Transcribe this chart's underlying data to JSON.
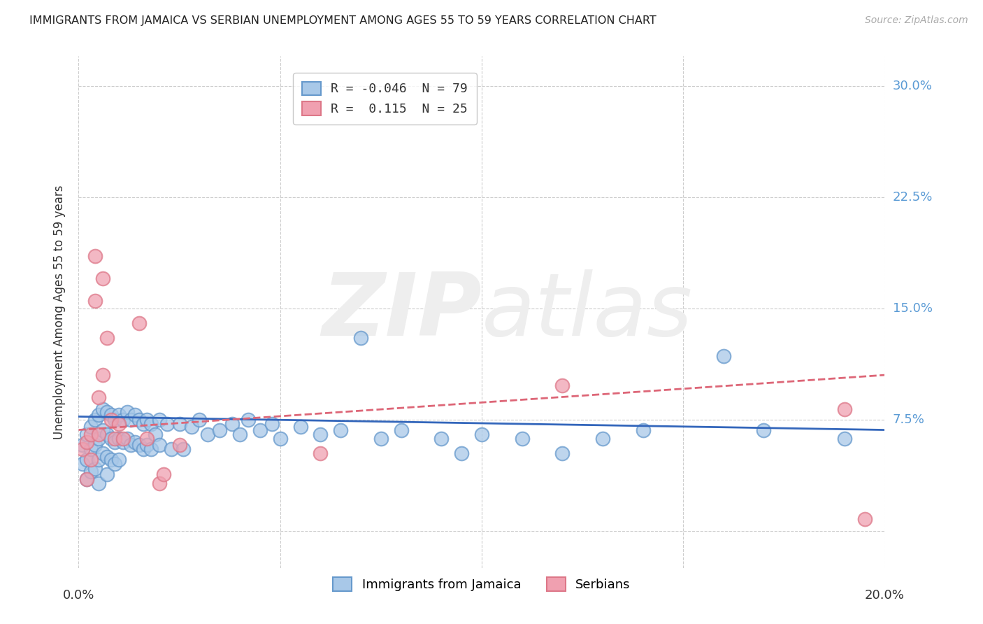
{
  "title": "IMMIGRANTS FROM JAMAICA VS SERBIAN UNEMPLOYMENT AMONG AGES 55 TO 59 YEARS CORRELATION CHART",
  "source": "Source: ZipAtlas.com",
  "ylabel": "Unemployment Among Ages 55 to 59 years",
  "xlim": [
    0.0,
    0.2
  ],
  "ylim": [
    -0.025,
    0.32
  ],
  "yticks": [
    0.0,
    0.075,
    0.15,
    0.225,
    0.3
  ],
  "ytick_labels": [
    "",
    "7.5%",
    "15.0%",
    "22.5%",
    "30.0%"
  ],
  "xticks": [
    0.0,
    0.05,
    0.1,
    0.15,
    0.2
  ],
  "xtick_labels": [
    "0.0%",
    "",
    "",
    "",
    "20.0%"
  ],
  "blue_color": "#a8c8e8",
  "pink_color": "#f0a0b0",
  "blue_edge_color": "#6699cc",
  "pink_edge_color": "#dd7788",
  "watermark_color": "#eeeeee",
  "blue_line_color": "#3366bb",
  "pink_line_color": "#dd6677",
  "blue_scatter": [
    [
      0.001,
      0.058
    ],
    [
      0.001,
      0.045
    ],
    [
      0.002,
      0.065
    ],
    [
      0.002,
      0.048
    ],
    [
      0.002,
      0.035
    ],
    [
      0.003,
      0.07
    ],
    [
      0.003,
      0.055
    ],
    [
      0.003,
      0.04
    ],
    [
      0.004,
      0.075
    ],
    [
      0.004,
      0.058
    ],
    [
      0.004,
      0.042
    ],
    [
      0.005,
      0.078
    ],
    [
      0.005,
      0.062
    ],
    [
      0.005,
      0.048
    ],
    [
      0.005,
      0.032
    ],
    [
      0.006,
      0.082
    ],
    [
      0.006,
      0.068
    ],
    [
      0.006,
      0.052
    ],
    [
      0.007,
      0.08
    ],
    [
      0.007,
      0.065
    ],
    [
      0.007,
      0.05
    ],
    [
      0.007,
      0.038
    ],
    [
      0.008,
      0.078
    ],
    [
      0.008,
      0.062
    ],
    [
      0.008,
      0.048
    ],
    [
      0.009,
      0.075
    ],
    [
      0.009,
      0.06
    ],
    [
      0.009,
      0.045
    ],
    [
      0.01,
      0.078
    ],
    [
      0.01,
      0.062
    ],
    [
      0.01,
      0.048
    ],
    [
      0.011,
      0.075
    ],
    [
      0.011,
      0.06
    ],
    [
      0.012,
      0.08
    ],
    [
      0.012,
      0.062
    ],
    [
      0.013,
      0.075
    ],
    [
      0.013,
      0.058
    ],
    [
      0.014,
      0.078
    ],
    [
      0.014,
      0.06
    ],
    [
      0.015,
      0.075
    ],
    [
      0.015,
      0.058
    ],
    [
      0.016,
      0.072
    ],
    [
      0.016,
      0.055
    ],
    [
      0.017,
      0.075
    ],
    [
      0.017,
      0.058
    ],
    [
      0.018,
      0.072
    ],
    [
      0.018,
      0.055
    ],
    [
      0.019,
      0.065
    ],
    [
      0.02,
      0.075
    ],
    [
      0.02,
      0.058
    ],
    [
      0.022,
      0.072
    ],
    [
      0.023,
      0.055
    ],
    [
      0.025,
      0.072
    ],
    [
      0.026,
      0.055
    ],
    [
      0.028,
      0.07
    ],
    [
      0.03,
      0.075
    ],
    [
      0.032,
      0.065
    ],
    [
      0.035,
      0.068
    ],
    [
      0.038,
      0.072
    ],
    [
      0.04,
      0.065
    ],
    [
      0.042,
      0.075
    ],
    [
      0.045,
      0.068
    ],
    [
      0.048,
      0.072
    ],
    [
      0.05,
      0.062
    ],
    [
      0.055,
      0.07
    ],
    [
      0.06,
      0.065
    ],
    [
      0.065,
      0.068
    ],
    [
      0.07,
      0.13
    ],
    [
      0.075,
      0.062
    ],
    [
      0.08,
      0.068
    ],
    [
      0.09,
      0.062
    ],
    [
      0.095,
      0.052
    ],
    [
      0.1,
      0.065
    ],
    [
      0.11,
      0.062
    ],
    [
      0.12,
      0.052
    ],
    [
      0.13,
      0.062
    ],
    [
      0.14,
      0.068
    ],
    [
      0.16,
      0.118
    ],
    [
      0.17,
      0.068
    ],
    [
      0.19,
      0.062
    ]
  ],
  "pink_scatter": [
    [
      0.001,
      0.055
    ],
    [
      0.002,
      0.06
    ],
    [
      0.002,
      0.035
    ],
    [
      0.003,
      0.065
    ],
    [
      0.003,
      0.048
    ],
    [
      0.004,
      0.185
    ],
    [
      0.004,
      0.155
    ],
    [
      0.005,
      0.09
    ],
    [
      0.005,
      0.065
    ],
    [
      0.006,
      0.17
    ],
    [
      0.006,
      0.105
    ],
    [
      0.007,
      0.13
    ],
    [
      0.008,
      0.075
    ],
    [
      0.009,
      0.062
    ],
    [
      0.01,
      0.072
    ],
    [
      0.011,
      0.062
    ],
    [
      0.015,
      0.14
    ],
    [
      0.017,
      0.062
    ],
    [
      0.02,
      0.032
    ],
    [
      0.021,
      0.038
    ],
    [
      0.025,
      0.058
    ],
    [
      0.06,
      0.052
    ],
    [
      0.12,
      0.098
    ],
    [
      0.19,
      0.082
    ],
    [
      0.195,
      0.008
    ]
  ],
  "blue_line_start_x": 0.0,
  "blue_line_start_y": 0.077,
  "blue_line_end_x": 0.2,
  "blue_line_end_y": 0.068,
  "pink_line_start_x": 0.0,
  "pink_line_start_y": 0.068,
  "pink_line_end_x": 0.2,
  "pink_line_end_y": 0.105
}
